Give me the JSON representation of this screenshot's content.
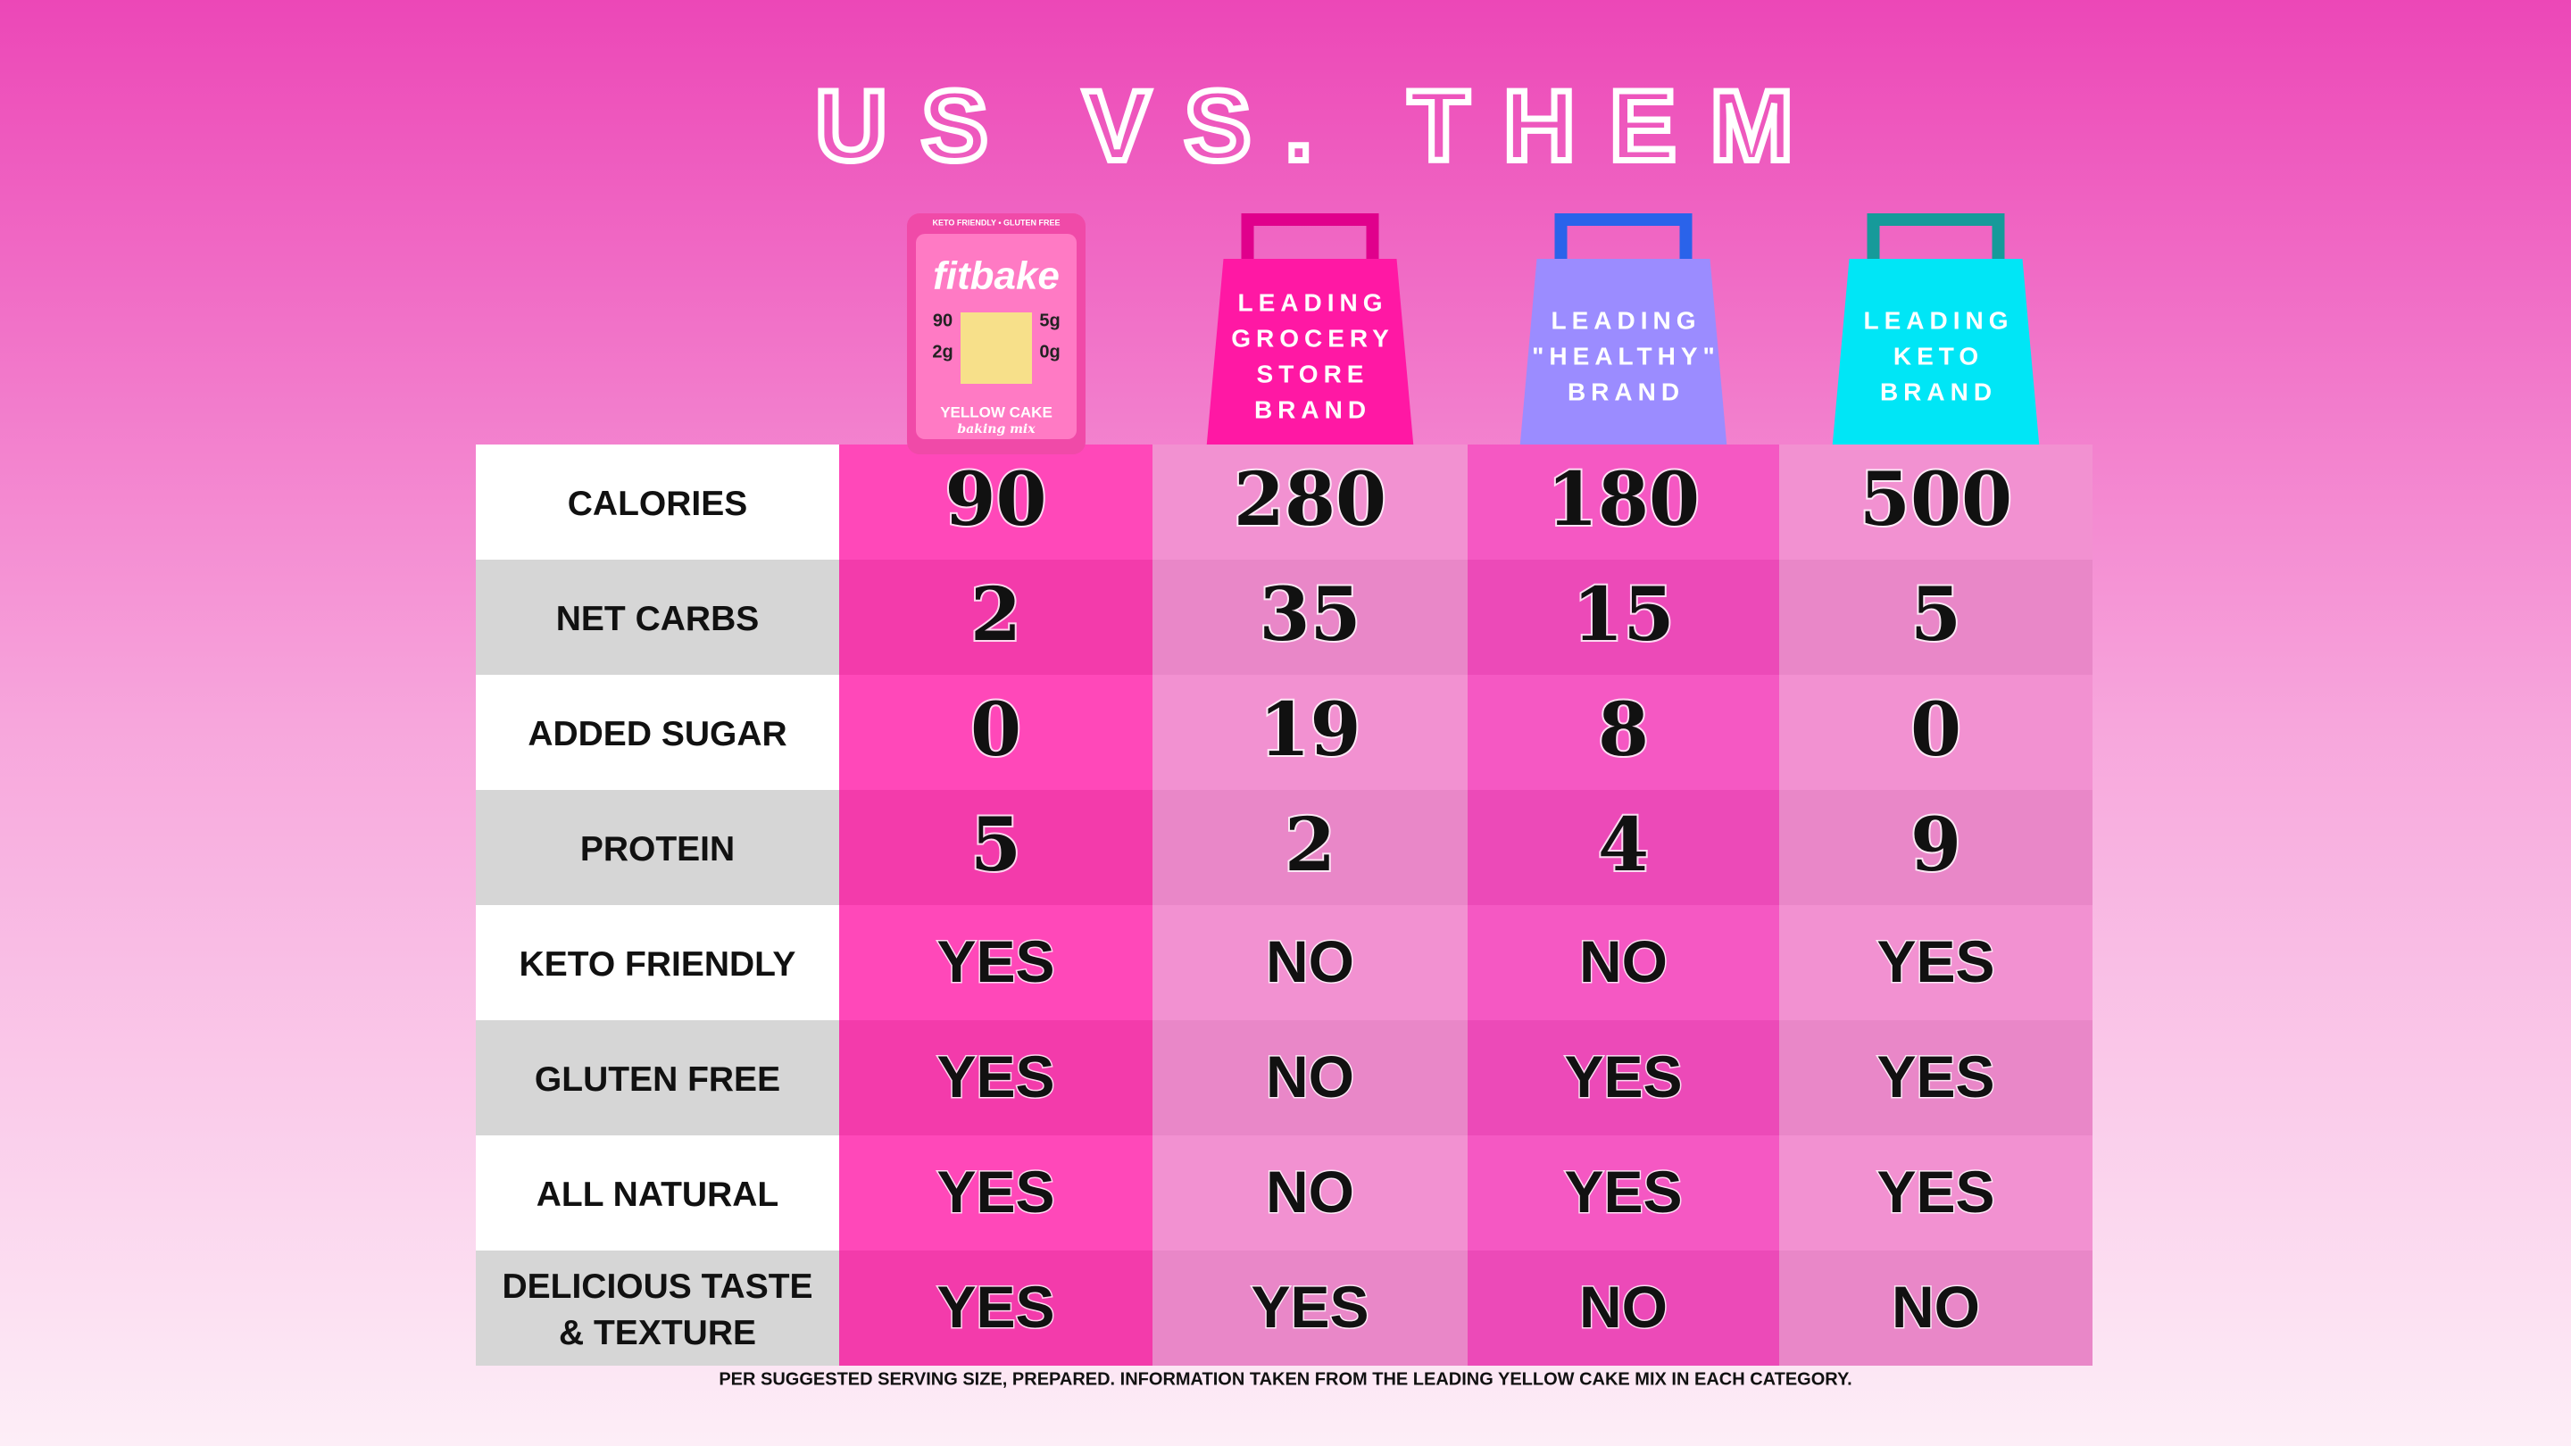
{
  "title": "US VS. THEM",
  "product": {
    "tagline": "KETO FRIENDLY • GLUTEN FREE",
    "brand": "fitbake",
    "stats": [
      "90",
      "5g",
      "2g",
      "0g"
    ],
    "flavor": "YELLOW CAKE",
    "subtitle": "baking mix"
  },
  "columns": [
    {
      "label_lines": [
        "LEADING",
        "GROCERY",
        "STORE",
        "BRAND"
      ]
    },
    {
      "label_lines": [
        "LEADING",
        "\"HEALTHY\"",
        "BRAND"
      ]
    },
    {
      "label_lines": [
        "LEADING",
        "KETO",
        "BRAND"
      ]
    }
  ],
  "rows": [
    {
      "label": [
        "CALORIES"
      ],
      "values": [
        90,
        280,
        180,
        500
      ]
    },
    {
      "label": [
        "NET CARBS"
      ],
      "values": [
        2,
        35,
        15,
        5
      ]
    },
    {
      "label": [
        "ADDED SUGAR"
      ],
      "values": [
        0,
        19,
        8,
        0
      ]
    },
    {
      "label": [
        "PROTEIN"
      ],
      "values": [
        5,
        2,
        4,
        9
      ]
    },
    {
      "label": [
        "KETO FRIENDLY"
      ],
      "values": [
        "YES",
        "NO",
        "NO",
        "YES"
      ]
    },
    {
      "label": [
        "GLUTEN FREE"
      ],
      "values": [
        "YES",
        "NO",
        "YES",
        "YES"
      ]
    },
    {
      "label": [
        "ALL NATURAL"
      ],
      "values": [
        "YES",
        "NO",
        "YES",
        "YES"
      ]
    },
    {
      "label": [
        "DELICIOUS TASTE",
        "& TEXTURE"
      ],
      "values": [
        "YES",
        "YES",
        "NO",
        "NO"
      ]
    }
  ],
  "footnote": "PER SUGGESTED SERVING SIZE, PREPARED. INFORMATION TAKEN FROM THE LEADING YELLOW CAKE MIX IN EACH CATEGORY."
}
